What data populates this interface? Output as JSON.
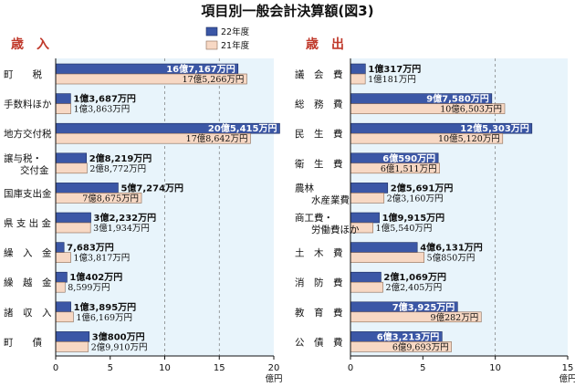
{
  "chart_data": {
    "type": "bar",
    "title": "項目別一般会計決算額(図3)",
    "legend": [
      "22年度",
      "21年度"
    ],
    "colors": {
      "22年度": "#3b57a6",
      "21年度": "#f7d8c4",
      "plot_background": "#e8f4fb",
      "grid": "#777777"
    },
    "panels": [
      {
        "name": "歳　入",
        "unit": "億円",
        "xlim": [
          0,
          20
        ],
        "xticks": [
          0,
          5,
          10,
          15,
          20
        ],
        "grid": "dashed at 10 and 15",
        "categories": [
          "町　　税",
          "手数料ほか",
          "地方交付税",
          [
            "譲与税・",
            "交付金"
          ],
          "国庫支出金",
          "県 支 出 金",
          "繰　入　金",
          "繰　越　金",
          "諸　収　入",
          "町　　債"
        ],
        "series": [
          {
            "name": "22年度",
            "values": [
              16.7167,
              1.3687,
              20.5415,
              2.8219,
              5.7274,
              3.2232,
              0.7683,
              1.0402,
              1.3895,
              3.08
            ],
            "labels": [
              "16億7,167万円",
              "1億3,687万円",
              "20億5,415万円",
              "2億8,219万円",
              "5億7,274万円",
              "3億2,232万円",
              "7,683万円",
              "1億402万円",
              "1億3,895万円",
              "3億800万円"
            ]
          },
          {
            "name": "21年度",
            "values": [
              17.5266,
              1.3863,
              17.8642,
              2.8772,
              7.8675,
              3.1934,
              1.3817,
              0.8599,
              1.6169,
              2.991
            ],
            "labels": [
              "17億5,266万円",
              "1億3,863万円",
              "17億8,642万円",
              "2億8,772万円",
              "7億8,675万円",
              "3億1,934万円",
              "1億3,817万円",
              "8,599万円",
              "1億6,169万円",
              "2億9,910万円"
            ]
          }
        ]
      },
      {
        "name": "歳　出",
        "unit": "億円",
        "xlim": [
          0,
          15
        ],
        "xticks": [
          0,
          5,
          10,
          15
        ],
        "grid": "dashed at 10",
        "categories": [
          "議　会　費",
          "総　務　費",
          "民　生　費",
          "衛　生　費",
          [
            "農林",
            "水産業費"
          ],
          [
            "商工費・",
            "労働費ほか"
          ],
          "土　木　費",
          "消　防　費",
          "教　育　費",
          "公　債　費"
        ],
        "series": [
          {
            "name": "22年度",
            "values": [
              1.0317,
              9.758,
              12.5303,
              6.059,
              2.5691,
              1.9915,
              4.6131,
              2.1069,
              7.3925,
              6.3213
            ],
            "labels": [
              "1億317万円",
              "9億7,580万円",
              "12億5,303万円",
              "6億590万円",
              "2億5,691万円",
              "1億9,915万円",
              "4億6,131万円",
              "2億1,069万円",
              "7億3,925万円",
              "6億3,213万円"
            ]
          },
          {
            "name": "21年度",
            "values": [
              1.0181,
              10.6503,
              10.512,
              6.1511,
              2.316,
              1.554,
              5.085,
              2.2405,
              9.0282,
              6.9693
            ],
            "labels": [
              "1億181万円",
              "10億6,503万円",
              "10億5,120万円",
              "6億1,511万円",
              "2億3,160万円",
              "1億5,540万円",
              "5億850万円",
              "2億2,405万円",
              "9億282万円",
              "6億9,693万円"
            ]
          }
        ]
      }
    ]
  }
}
